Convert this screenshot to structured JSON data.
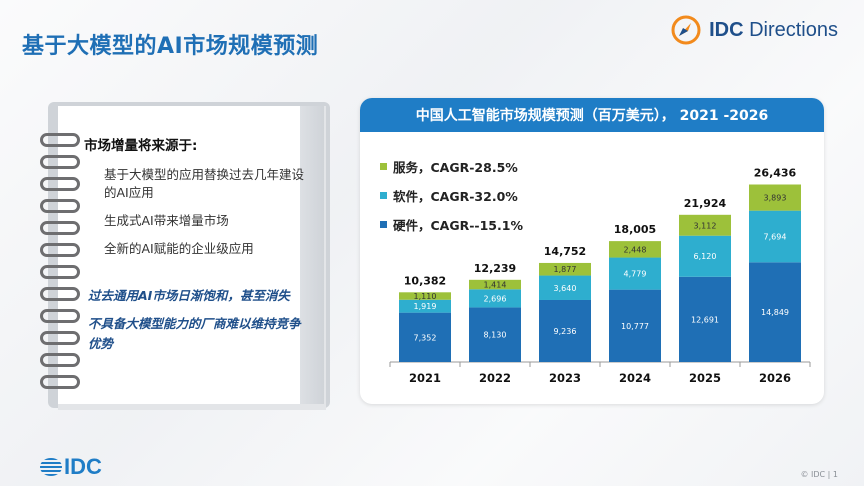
{
  "slide": {
    "title": "基于大模型的AI市场规模预测",
    "copyright": "© IDC |  1"
  },
  "brand": {
    "logo_text_bold": "IDC",
    "logo_text_rest": " Directions",
    "footer_logo": "IDC",
    "accent": "#1f7dc6",
    "title_color": "#1f6fb5"
  },
  "notes": {
    "heading": "市场增量将来源于:",
    "items": [
      "基于大模型的应用替换过去几年建设的AI应用",
      "生成式AI带来增量市场",
      "全新的AI赋能的企业级应用"
    ],
    "emphasis": [
      "过去通用AI市场日渐饱和，甚至消失",
      "不具备大模型能力的厂商难以维持竞争优势"
    ]
  },
  "chart_panel": {
    "header": "中国人工智能市场规模预测（百万美元），  2021 -2026",
    "legend": [
      {
        "label": "服务，CAGR-28.5%",
        "color": "#9dc13a"
      },
      {
        "label": "软件，CAGR-32.0%",
        "color": "#2eaecf"
      },
      {
        "label": "硬件，CAGR--15.1%",
        "color": "#1f6fb5"
      }
    ]
  },
  "chart_data": {
    "type": "bar",
    "stacked": true,
    "categories": [
      "2021",
      "2022",
      "2023",
      "2024",
      "2025",
      "2026"
    ],
    "series": [
      {
        "name": "硬件",
        "color": "#1f6fb5",
        "values": [
          7352,
          8130,
          9236,
          10777,
          12691,
          14849
        ],
        "labels": [
          "7,352",
          "8,130",
          "9,236",
          "10,777",
          "12,691",
          "14,849"
        ]
      },
      {
        "name": "软件",
        "color": "#2eaecf",
        "values": [
          1919,
          2696,
          3640,
          4779,
          6120,
          7694
        ],
        "labels": [
          "1,919",
          "2,696",
          "3,640",
          "4,779",
          "6,120",
          "7,694"
        ]
      },
      {
        "name": "服务",
        "color": "#9dc13a",
        "values": [
          1110,
          1414,
          1877,
          2448,
          3112,
          3893
        ],
        "labels": [
          "1,110",
          "1,414",
          "1,877",
          "2,448",
          "3,112",
          "3,893"
        ]
      }
    ],
    "totals": [
      "10,382",
      "12,239",
      "14,752",
      "18,005",
      "21,924",
      "26,436"
    ],
    "total_values": [
      10382,
      12239,
      14752,
      18005,
      21924,
      26436
    ],
    "ylim": [
      0,
      28000
    ],
    "grid": false,
    "legend_position": "top-left"
  }
}
